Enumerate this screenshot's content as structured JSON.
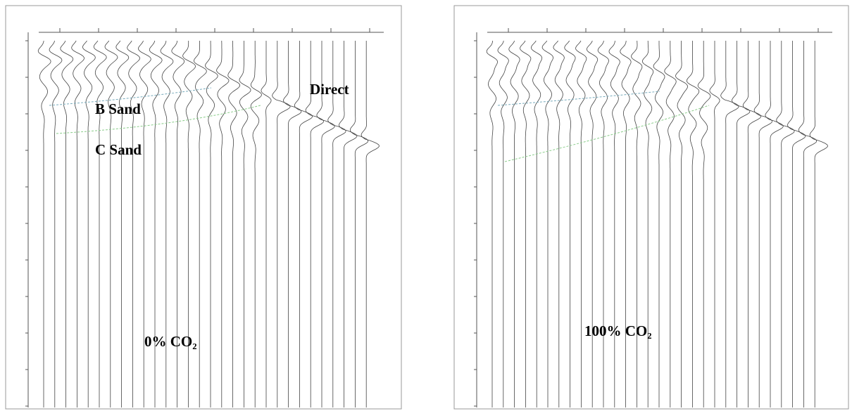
{
  "left_panel": {
    "labels": {
      "direct": "Direct",
      "b_sand": "B Sand",
      "c_sand": "C Sand",
      "case": "0% CO₂"
    }
  },
  "right_panel": {
    "labels": {
      "case": "100% CO₂"
    }
  }
}
